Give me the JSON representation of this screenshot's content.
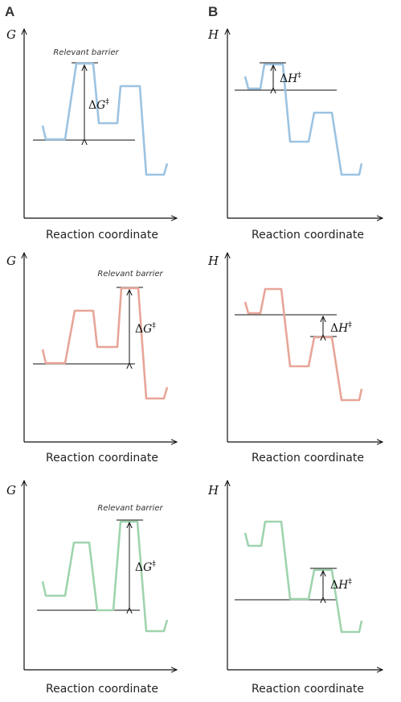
{
  "panel_labels": {
    "left": "A",
    "right": "B"
  },
  "axes": {
    "free_energy": "G",
    "enthalpy": "H",
    "x_label": "Reaction coordinate"
  },
  "annotations": {
    "relevant_barrier": "Relevant barrier",
    "delta": "Δ",
    "dagger": "‡"
  },
  "colors": {
    "row1": "#9cc3e2",
    "row2": "#e8a598",
    "row3": "#9fd4ad"
  }
}
